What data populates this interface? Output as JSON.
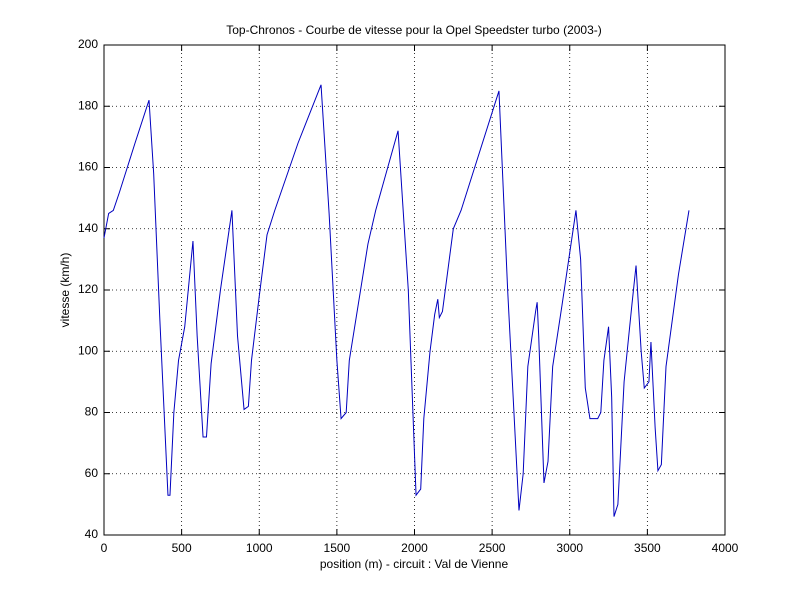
{
  "chart_data": {
    "type": "line",
    "title": "Top-Chronos - Courbe de vitesse pour la Opel Speedster turbo (2003-)",
    "xlabel": "position (m) - circuit : Val de Vienne",
    "ylabel": "vitesse (km/h)",
    "x": [
      0,
      30,
      60,
      100,
      200,
      290,
      320,
      360,
      412,
      425,
      450,
      480,
      520,
      573,
      600,
      638,
      660,
      690,
      750,
      824,
      860,
      902,
      930,
      950,
      1000,
      1050,
      1100,
      1250,
      1398,
      1450,
      1500,
      1527,
      1560,
      1580,
      1700,
      1750,
      1894,
      1960,
      2010,
      2040,
      2060,
      2100,
      2130,
      2150,
      2160,
      2180,
      2250,
      2300,
      2544,
      2600,
      2673,
      2700,
      2730,
      2780,
      2790,
      2800,
      2834,
      2860,
      2890,
      2950,
      3040,
      3070,
      3100,
      3130,
      3180,
      3200,
      3220,
      3250,
      3270,
      3285,
      3310,
      3350,
      3400,
      3427,
      3460,
      3480,
      3510,
      3523,
      3550,
      3568,
      3590,
      3620,
      3700,
      3768
    ],
    "values": [
      137,
      145,
      146,
      152,
      168,
      182,
      158,
      110,
      53,
      53,
      80,
      97,
      108,
      136,
      105,
      72,
      72,
      96,
      120,
      146,
      105,
      81,
      82,
      97,
      118,
      138,
      146,
      168,
      187,
      145,
      97,
      78,
      80,
      97,
      135,
      146,
      172,
      120,
      53,
      55,
      78,
      100,
      112,
      117,
      111,
      113,
      140,
      146,
      185,
      120,
      48,
      60,
      95,
      113,
      116,
      105,
      57,
      64,
      95,
      115,
      146,
      130,
      88,
      78,
      78,
      80,
      97,
      108,
      85,
      46,
      50,
      90,
      115,
      128,
      100,
      88,
      90,
      103,
      75,
      61,
      63,
      95,
      125,
      146
    ],
    "color": "#0000bf",
    "xlim": [
      0,
      4000
    ],
    "xticks": [
      0,
      500,
      1000,
      1500,
      2000,
      2500,
      3000,
      3500,
      4000
    ],
    "ylim": [
      40,
      200
    ],
    "yticks": [
      40,
      60,
      80,
      100,
      120,
      140,
      160,
      180,
      200
    ],
    "grid": true
  }
}
